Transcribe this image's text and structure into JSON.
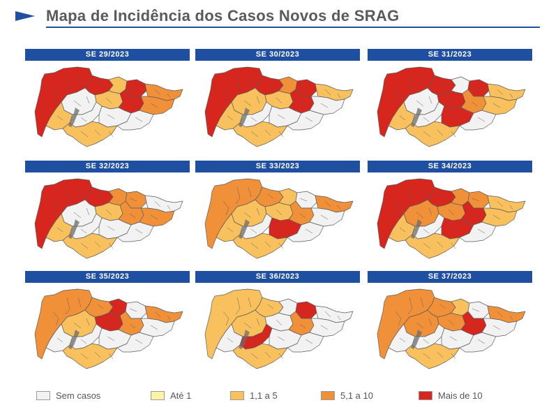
{
  "header": {
    "title": "Mapa de Incidência dos Casos Novos de SRAG"
  },
  "colors": {
    "none": "#f2f2f2",
    "upto1": "#fdf2a8",
    "c1to5": "#f9c15e",
    "c5to10": "#f0913a",
    "over10": "#d7261e",
    "outline": "#5b5b5b",
    "header_bar": "#1f4fa0"
  },
  "maps": [
    {
      "label": "SE 29/2023",
      "regions": [
        "over10",
        "over10",
        "c1to5",
        "over10",
        "c5to10",
        "c1to5",
        "over10",
        "c5to10",
        "none",
        "c1to5",
        "none",
        "none",
        "c1to5",
        "none"
      ]
    },
    {
      "label": "SE 30/2023",
      "regions": [
        "over10",
        "over10",
        "c5to10",
        "over10",
        "c1to5",
        "c1to5",
        "over10",
        "none",
        "c1to5",
        "c1to5",
        "none",
        "none",
        "c1to5",
        "none"
      ]
    },
    {
      "label": "SE 31/2023",
      "regions": [
        "over10",
        "over10",
        "none",
        "over10",
        "c1to5",
        "over10",
        "c5to10",
        "c1to5",
        "none",
        "c1to5",
        "none",
        "over10",
        "c1to5",
        "none"
      ]
    },
    {
      "label": "SE 32/2023",
      "regions": [
        "over10",
        "over10",
        "c5to10",
        "c5to10",
        "none",
        "c1to5",
        "c5to10",
        "c5to10",
        "none",
        "c1to5",
        "none",
        "none",
        "c1to5",
        "none"
      ]
    },
    {
      "label": "SE 33/2023",
      "regions": [
        "c5to10",
        "c5to10",
        "c1to5",
        "none",
        "c5to10",
        "c1to5",
        "c5to10",
        "none",
        "c1to5",
        "c1to5",
        "none",
        "over10",
        "c1to5",
        "none"
      ]
    },
    {
      "label": "SE 34/2023",
      "regions": [
        "over10",
        "over10",
        "c5to10",
        "c5to10",
        "c1to5",
        "c5to10",
        "over10",
        "c1to5",
        "c5to10",
        "c1to5",
        "none",
        "over10",
        "c1to5",
        "none"
      ]
    },
    {
      "label": "SE 35/2023",
      "regions": [
        "c5to10",
        "c5to10",
        "over10",
        "none",
        "c5to10",
        "over10",
        "c5to10",
        "none",
        "c1to5",
        "none",
        "none",
        "none",
        "c1to5",
        "none"
      ]
    },
    {
      "label": "SE 36/2023",
      "regions": [
        "c1to5",
        "c1to5",
        "none",
        "over10",
        "none",
        "none",
        "c5to10",
        "none",
        "c1to5",
        "none",
        "over10",
        "none",
        "c1to5",
        "none"
      ]
    },
    {
      "label": "SE 37/2023",
      "regions": [
        "c5to10",
        "c5to10",
        "c1to5",
        "none",
        "c5to10",
        "c5to10",
        "over10",
        "none",
        "c5to10",
        "none",
        "none",
        "none",
        "c1to5",
        "none"
      ]
    }
  ],
  "legend": [
    {
      "key": "none",
      "label": "Sem casos"
    },
    {
      "key": "upto1",
      "label": "Até 1"
    },
    {
      "key": "c1to5",
      "label": "1,1 a 5"
    },
    {
      "key": "c5to10",
      "label": "5,1 a 10"
    },
    {
      "key": "over10",
      "label": "Mais de 10"
    }
  ]
}
